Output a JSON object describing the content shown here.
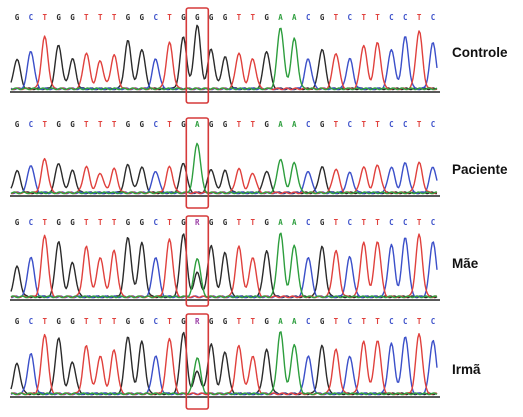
{
  "tracks": [
    {
      "label": "Controle",
      "sequence": "GCTGGTTTGGCTGGGGTTGAACGTCTTCCTC",
      "highlight_base": "G"
    },
    {
      "label": "Paciente",
      "sequence": "GCTGGTTTGGCTGAGGTTGAACGTCTTCCTC",
      "highlight_base": "A"
    },
    {
      "label": "Mãe",
      "sequence": "GCTGGTTTGGCTGRGGTTGAACGTCTTCCTC",
      "highlight_base": "R"
    },
    {
      "label": "Irmã",
      "sequence": "GCTGGTTTGGCTGRGGTTGAACGTCTTCCTC",
      "highlight_base": "R"
    }
  ],
  "highlight_index": 13,
  "colors": {
    "A": "#2e9e3e",
    "C": "#3b4fc9",
    "G": "#2b2b2b",
    "T": "#e0413d",
    "R": "#9b3fa6",
    "highlight_box": "#d63a3a",
    "baseline": "#222222"
  }
}
